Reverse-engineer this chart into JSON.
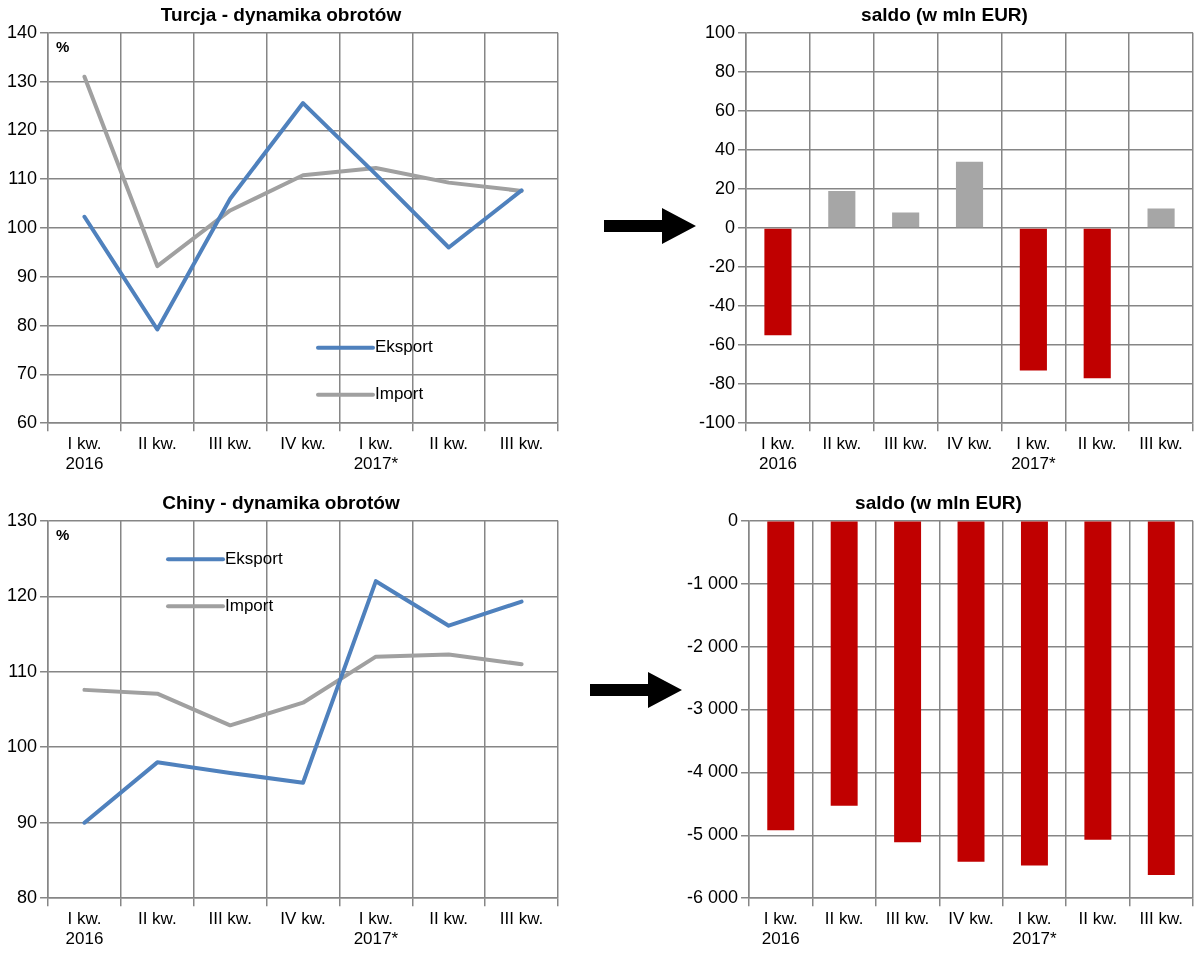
{
  "chart_data": [
    {
      "type": "line",
      "title": "Turcja - dynamika obrotów",
      "ylabel": "%",
      "categories": [
        "I kw.\n2016",
        "II kw.",
        "III kw.",
        "IV kw.",
        "I kw.\n2017*",
        "II kw.",
        "III kw."
      ],
      "series": [
        {
          "name": "Eksport",
          "color": "#4f81bd",
          "values": [
            102.3,
            79.2,
            106,
            125.6,
            111,
            96,
            107.7
          ]
        },
        {
          "name": "Import",
          "color": "#a0a0a0",
          "values": [
            131,
            92.2,
            103.6,
            110.8,
            112.3,
            109.3,
            107.6
          ]
        }
      ],
      "ylim": [
        60,
        140
      ],
      "yticks": [
        60,
        70,
        80,
        90,
        100,
        110,
        120,
        130,
        140
      ],
      "grid": true,
      "legend": "bottom right",
      "marker": "none",
      "line_style": "solid"
    },
    {
      "type": "bar",
      "title": "saldo (w mln EUR)",
      "categories": [
        "I kw.\n2016",
        "II kw.",
        "III kw.",
        "IV kw.",
        "I kw.\n2017*",
        "II kw.",
        "III kw."
      ],
      "values": [
        -55,
        19,
        8,
        34,
        -73,
        -77,
        10
      ],
      "colors": [
        "#c00000",
        "#a6a6a6",
        "#a6a6a6",
        "#a6a6a6",
        "#c00000",
        "#c00000",
        "#a6a6a6"
      ],
      "ylim": [
        -100,
        100
      ],
      "yticks": [
        -100,
        -80,
        -60,
        -40,
        -20,
        0,
        20,
        40,
        60,
        80,
        100
      ],
      "grid": true
    },
    {
      "type": "line",
      "title": "Chiny - dynamika obrotów",
      "ylabel": "%",
      "categories": [
        "I kw.\n2016",
        "II kw.",
        "III kw.",
        "IV kw.",
        "I kw.\n2017*",
        "II kw.",
        "III kw."
      ],
      "series": [
        {
          "name": "Eksport",
          "color": "#4f81bd",
          "values": [
            90,
            98,
            96.6,
            95.3,
            122,
            116.1,
            119.3
          ]
        },
        {
          "name": "Import",
          "color": "#a0a0a0",
          "values": [
            107.6,
            107.1,
            102.9,
            105.9,
            112,
            112.3,
            111
          ]
        }
      ],
      "ylim": [
        80,
        130
      ],
      "yticks": [
        80,
        90,
        100,
        110,
        120,
        130
      ],
      "grid": true,
      "legend": "top left",
      "marker": "none",
      "line_style": "solid"
    },
    {
      "type": "bar",
      "title": "saldo (w mln EUR)",
      "categories": [
        "I kw.\n2016",
        "II kw.",
        "III kw.",
        "IV kw.",
        "I kw.\n2017*",
        "II kw.",
        "III kw."
      ],
      "values": [
        -4920,
        -4530,
        -5110,
        -5420,
        -5480,
        -5070,
        -5630
      ],
      "colors": [
        "#c00000",
        "#c00000",
        "#c00000",
        "#c00000",
        "#c00000",
        "#c00000",
        "#c00000"
      ],
      "ylim": [
        -6000,
        0
      ],
      "yticks": [
        {
          "value": -6000,
          "label": "-6 000"
        },
        {
          "value": -5000,
          "label": "-5 000"
        },
        {
          "value": -4000,
          "label": "-4 000"
        },
        {
          "value": -3000,
          "label": "-3 000"
        },
        {
          "value": -2000,
          "label": "-2 000"
        },
        {
          "value": -1000,
          "label": "-1 000"
        },
        0
      ],
      "grid": true
    }
  ]
}
